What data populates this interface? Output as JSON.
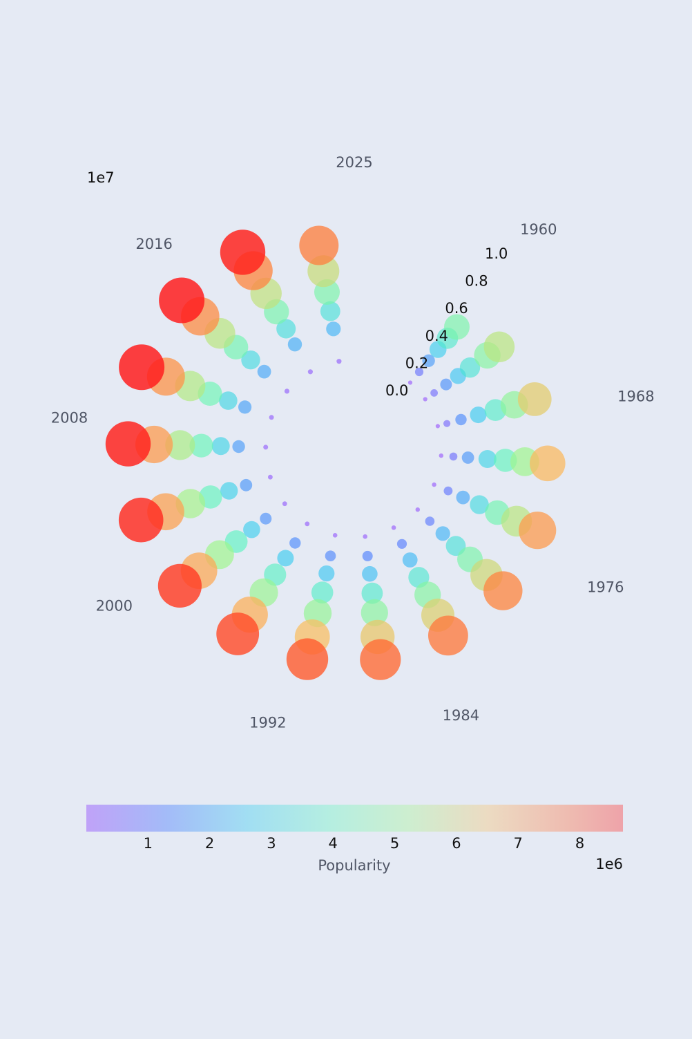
{
  "chart_data": {
    "type": "scatter",
    "projection": "polar",
    "title": "",
    "angular_axis": {
      "variable": "year",
      "range": [
        1960,
        2025
      ],
      "tick_labels": [
        "1960",
        "1968",
        "1976",
        "1984",
        "1992",
        "2000",
        "2008",
        "2016",
        "2025"
      ],
      "tick_values": [
        1960,
        1968,
        1976,
        1984,
        1992,
        2000,
        2008,
        2016,
        2025
      ],
      "direction": "clockwise"
    },
    "radial_axis": {
      "range": [
        0,
        1.0
      ],
      "tick_labels": [
        "0.0",
        "0.2",
        "0.4",
        "0.6",
        "0.8",
        "1.0"
      ],
      "tick_values": [
        0,
        0.2,
        0.4,
        0.6,
        0.8,
        1.0
      ],
      "offset_label": "1e7"
    },
    "colorbar": {
      "label": "Popularity",
      "range": [
        0,
        8700000
      ],
      "tick_labels": [
        "1",
        "2",
        "3",
        "4",
        "5",
        "6",
        "7",
        "8"
      ],
      "tick_values": [
        1,
        2,
        3,
        4,
        5,
        6,
        7,
        8
      ],
      "offset_label": "1e6",
      "colormap": "rainbow"
    },
    "grid": false,
    "size_encodes": "Popularity",
    "series": [
      {
        "name": "",
        "year": 1960,
        "values": [
          40000,
          900000,
          1800000,
          2700000,
          3600000,
          4500000
        ]
      },
      {
        "name": "",
        "year": 1963,
        "values": [
          30000,
          700000,
          1600000,
          2500000,
          3400000,
          4700000,
          5600000
        ]
      },
      {
        "name": "",
        "year": 1967,
        "values": [
          20000,
          600000,
          1500000,
          2600000,
          3700000,
          4900000,
          6200000
        ]
      },
      {
        "name": "",
        "year": 1971,
        "values": [
          50000,
          800000,
          1700000,
          2900000,
          4000000,
          5200000,
          6600000
        ]
      },
      {
        "name": "",
        "year": 1975,
        "values": [
          60000,
          1000000,
          2000000,
          3100000,
          4300000,
          5600000,
          7000000
        ]
      },
      {
        "name": "",
        "year": 1979,
        "values": [
          70000,
          1100000,
          2200000,
          3300000,
          4500000,
          5900000,
          7300000
        ]
      },
      {
        "name": "",
        "year": 1983,
        "values": [
          80000,
          1200000,
          2300000,
          3500000,
          4700000,
          6100000,
          7500000
        ]
      },
      {
        "name": "",
        "year": 1987,
        "values": [
          90000,
          1300000,
          2400000,
          3600000,
          4800000,
          6300000,
          7700000
        ]
      },
      {
        "name": "",
        "year": 1991,
        "values": [
          100000,
          1400000,
          2500000,
          3700000,
          5000000,
          6500000,
          7900000
        ]
      },
      {
        "name": "",
        "year": 1995,
        "values": [
          110000,
          1500000,
          2600000,
          3800000,
          5100000,
          6700000,
          8100000
        ]
      },
      {
        "name": "",
        "year": 1999,
        "values": [
          120000,
          1600000,
          2700000,
          3900000,
          5200000,
          6800000,
          8300000
        ]
      },
      {
        "name": "",
        "year": 2003,
        "values": [
          130000,
          1700000,
          2800000,
          4000000,
          5300000,
          6900000,
          8500000
        ]
      },
      {
        "name": "",
        "year": 2007,
        "values": [
          140000,
          1800000,
          2900000,
          4100000,
          5400000,
          7000000,
          8600000
        ]
      },
      {
        "name": "",
        "year": 2011,
        "values": [
          150000,
          1900000,
          3000000,
          4200000,
          5500000,
          7100000,
          8700000
        ]
      },
      {
        "name": "",
        "year": 2015,
        "values": [
          160000,
          2000000,
          3100000,
          4300000,
          5600000,
          7200000,
          8700000
        ]
      },
      {
        "name": "",
        "year": 2019,
        "values": [
          170000,
          2100000,
          3200000,
          4400000,
          5700000,
          7300000,
          8600000
        ]
      },
      {
        "name": "",
        "year": 2023,
        "values": [
          180000,
          2200000,
          3300000,
          4500000,
          5800000,
          7400000
        ]
      }
    ]
  }
}
